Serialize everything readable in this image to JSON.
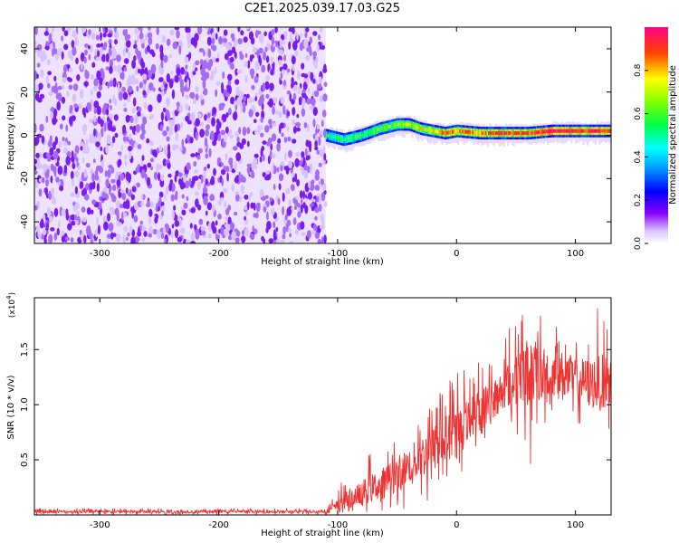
{
  "title": "C2E1.2025.039.17.03.G25",
  "chart_data": [
    {
      "type": "heatmap",
      "panel": "spectrogram",
      "xlabel": "Height of straight line (km)",
      "ylabel": "Frequency (Hz)",
      "xlim": [
        -355,
        130
      ],
      "ylim": [
        -50,
        50
      ],
      "x_ticks": [
        -300,
        -200,
        -100,
        0,
        100
      ],
      "x_tick_labels": [
        "-300",
        "-200",
        "-100",
        "0",
        "100"
      ],
      "y_ticks": [
        -40,
        -20,
        0,
        20,
        40
      ],
      "y_tick_labels": [
        "-40",
        "-20",
        "0",
        "20",
        "40"
      ],
      "noise_region_x": [
        -355,
        -110
      ],
      "signal_region_x": [
        -110,
        130
      ],
      "signal_track": {
        "x": [
          -110,
          -95,
          -80,
          -65,
          -50,
          -40,
          -30,
          -20,
          -10,
          0,
          20,
          40,
          60,
          80,
          100,
          130
        ],
        "freq_hz": [
          0,
          -2,
          0,
          3,
          5,
          5,
          3,
          2,
          1,
          2,
          1,
          1,
          1,
          2,
          2,
          2
        ],
        "normalized_amplitude": [
          0.5,
          0.5,
          0.55,
          0.6,
          0.65,
          0.7,
          0.75,
          0.8,
          0.85,
          0.9,
          0.9,
          0.95,
          0.95,
          1.0,
          1.0,
          0.95
        ]
      },
      "colorbar": {
        "label": "Normalized spectral amplitude",
        "range": [
          0,
          1
        ],
        "ticks": [
          0.0,
          0.2,
          0.4,
          0.6,
          0.8
        ],
        "tick_labels": [
          "0.0",
          "0.2",
          "0.4",
          "0.6",
          "0.8"
        ],
        "colors": [
          "#ffffff",
          "#8800ff",
          "#0000ff",
          "#00ffff",
          "#00ff00",
          "#ffff00",
          "#ff0000",
          "#ff0088"
        ]
      }
    },
    {
      "type": "line",
      "panel": "snr",
      "xlabel": "Height of straight line (km)",
      "ylabel": "SNR (10 * v/v)",
      "scale_label": "(x10",
      "scale_exponent": "4",
      "scale_close": ")",
      "xlim": [
        -355,
        130
      ],
      "ylim": [
        0,
        1.97
      ],
      "x_ticks": [
        -300,
        -200,
        -100,
        0,
        100
      ],
      "x_tick_labels": [
        "-300",
        "-200",
        "-100",
        "0",
        "100"
      ],
      "y_ticks": [
        0.5,
        1.0,
        1.5
      ],
      "y_tick_labels": [
        "0.5",
        "1.0",
        "1.5"
      ],
      "series": [
        {
          "name": "SNR",
          "color": "#ee3333",
          "envelope_x": [
            -355,
            -300,
            -200,
            -110,
            -100,
            -90,
            -80,
            -60,
            -40,
            -20,
            0,
            10,
            20,
            30,
            40,
            50,
            60,
            70,
            80,
            90,
            100,
            110,
            120,
            130
          ],
          "baseline": [
            0.03,
            0.03,
            0.03,
            0.03,
            0.08,
            0.15,
            0.2,
            0.3,
            0.45,
            0.6,
            0.75,
            0.85,
            0.95,
            1.05,
            1.15,
            1.25,
            1.3,
            1.3,
            1.3,
            1.25,
            1.25,
            1.2,
            1.2,
            1.2
          ],
          "peak": [
            0.06,
            0.06,
            0.06,
            0.06,
            0.25,
            0.4,
            0.5,
            0.65,
            0.8,
            1.05,
            1.35,
            1.4,
            1.45,
            1.55,
            1.6,
            1.9,
            1.75,
            1.9,
            1.7,
            1.75,
            1.6,
            1.75,
            1.9,
            1.8
          ],
          "trough": [
            0.0,
            0.0,
            0.0,
            0.0,
            0.0,
            0.0,
            0.0,
            0.0,
            0.05,
            0.1,
            0.3,
            0.5,
            0.6,
            0.7,
            0.8,
            0.7,
            0.35,
            0.8,
            0.75,
            0.7,
            0.8,
            0.75,
            0.75,
            0.7
          ]
        }
      ]
    }
  ]
}
